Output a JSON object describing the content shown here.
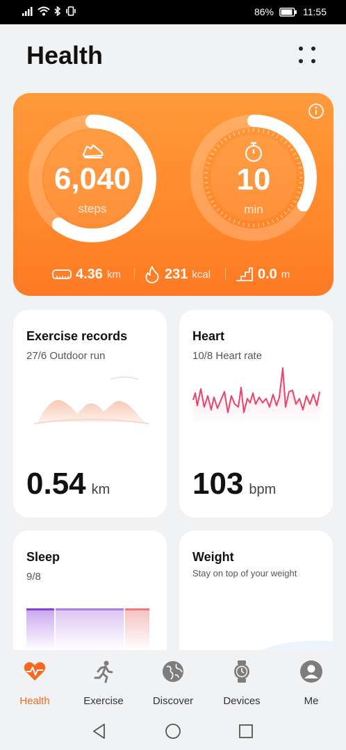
{
  "status_bar": {
    "battery": "86%",
    "time": "11:55"
  },
  "header": {
    "title": "Health"
  },
  "activity": {
    "steps": {
      "value": "6,040",
      "unit": "steps",
      "progress": 0.6
    },
    "duration": {
      "value": "10",
      "unit": "min",
      "progress": 0.33
    },
    "stats": [
      {
        "icon": "ruler-icon",
        "value": "4.36",
        "unit": "km"
      },
      {
        "icon": "flame-icon",
        "value": "231",
        "unit": "kcal"
      },
      {
        "icon": "stairs-icon",
        "value": "0.0",
        "unit": "m"
      }
    ]
  },
  "cards": {
    "exercise": {
      "title": "Exercise records",
      "date": "27/6",
      "type": "Outdoor run",
      "value": "0.54",
      "unit": "km"
    },
    "heart": {
      "title": "Heart",
      "date": "10/8",
      "type": "Heart rate",
      "value": "103",
      "unit": "bpm"
    },
    "sleep": {
      "title": "Sleep",
      "date": "9/8"
    },
    "weight": {
      "title": "Weight",
      "subtitle": "Stay on top of your weight"
    }
  },
  "bottom_nav": [
    {
      "label": "Health",
      "icon": "heart-pulse-icon",
      "active": true
    },
    {
      "label": "Exercise",
      "icon": "running-icon",
      "active": false
    },
    {
      "label": "Discover",
      "icon": "globe-icon",
      "active": false
    },
    {
      "label": "Devices",
      "icon": "watch-icon",
      "active": false
    },
    {
      "label": "Me",
      "icon": "person-icon",
      "active": false
    }
  ],
  "colors": {
    "accent": "#f56a1f",
    "heart_line": "#e8436a",
    "sleep_deep": "#8a3fd1",
    "sleep_light": "#b17ee6",
    "sleep_awake": "#ee7b7b"
  }
}
